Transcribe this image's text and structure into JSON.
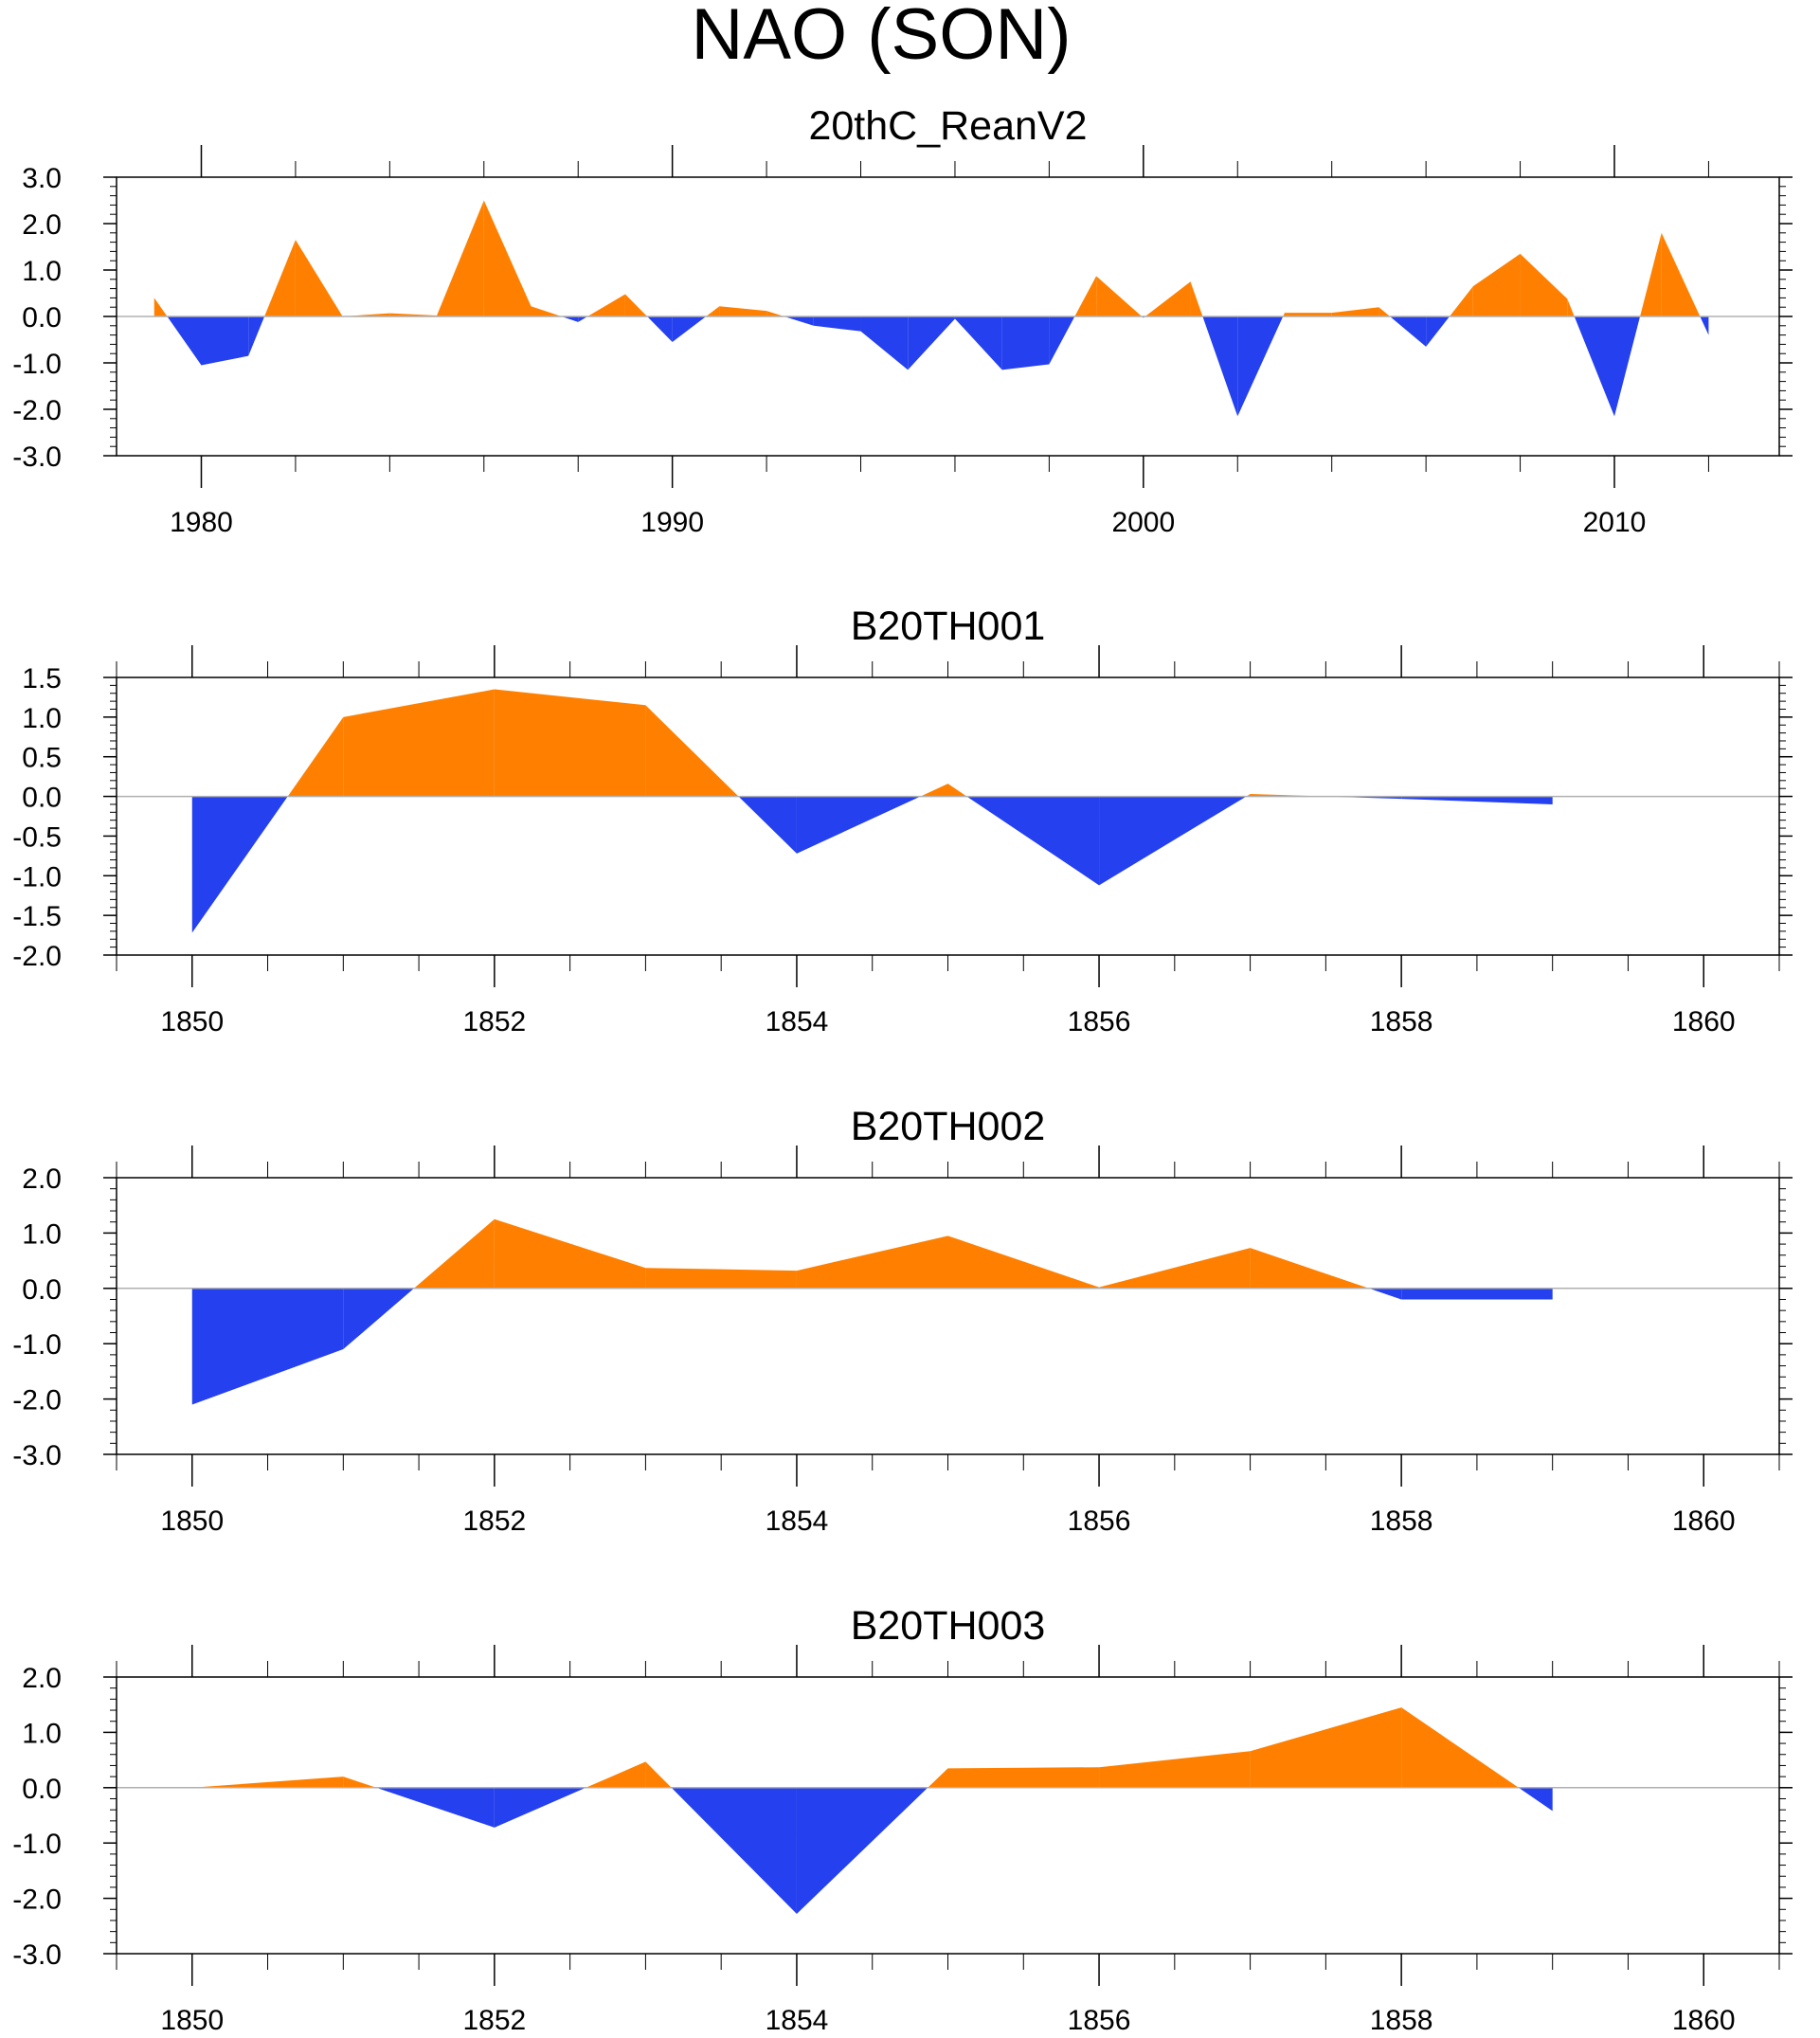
{
  "title": "NAO (SON)",
  "colors": {
    "positive": "#ff8000",
    "negative": "#2540ee",
    "axis": "#000000",
    "zero_line": "#b0b0b0"
  },
  "chart_data": [
    {
      "type": "area",
      "title": "20thC_ReanV2",
      "x": [
        1979,
        1980,
        1981,
        1982,
        1983,
        1984,
        1985,
        1986,
        1987,
        1988,
        1989,
        1990,
        1991,
        1992,
        1993,
        1994,
        1995,
        1996,
        1997,
        1998,
        1999,
        2000,
        2001,
        2002,
        2003,
        2004,
        2005,
        2006,
        2007,
        2008,
        2009,
        2010,
        2011,
        2012
      ],
      "values": [
        0.4,
        -1.05,
        -0.85,
        1.65,
        0.0,
        0.07,
        0.02,
        2.5,
        0.22,
        -0.12,
        0.48,
        -0.55,
        0.22,
        0.12,
        -0.2,
        -0.32,
        -1.15,
        -0.05,
        -1.15,
        -1.03,
        0.87,
        -0.03,
        0.75,
        -2.15,
        0.08,
        0.08,
        0.2,
        -0.65,
        0.65,
        1.35,
        0.38,
        -2.15,
        1.8,
        -0.4
      ],
      "xlim": [
        1978.2,
        2013.5
      ],
      "ylim": [
        -3.0,
        3.0
      ],
      "yticks": [
        "3.0",
        "2.0",
        "1.0",
        "0.0",
        "-1.0",
        "-2.0",
        "-3.0"
      ],
      "ytick_values": [
        3.0,
        2.0,
        1.0,
        0.0,
        -1.0,
        -2.0,
        -3.0
      ],
      "xticks": [
        "1980",
        "1990",
        "2000",
        "2010"
      ],
      "xtick_values": [
        1980,
        1990,
        2000,
        2010
      ],
      "xminor_step": 2,
      "yminor_step": 0.2,
      "xlabel": "",
      "ylabel": "",
      "grid": false
    },
    {
      "type": "area",
      "title": "B20TH001",
      "x": [
        1850,
        1851,
        1852,
        1853,
        1854,
        1855,
        1856,
        1857,
        1858,
        1859
      ],
      "values": [
        -1.72,
        1.0,
        1.35,
        1.15,
        -0.72,
        0.16,
        -1.12,
        0.03,
        -0.03,
        -0.1
      ],
      "xlim": [
        1849.5,
        1860.5
      ],
      "ylim": [
        -2.0,
        1.5
      ],
      "yticks": [
        "1.5",
        "1.0",
        "0.5",
        "0.0",
        "-0.5",
        "-1.0",
        "-1.5",
        "-2.0"
      ],
      "ytick_values": [
        1.5,
        1.0,
        0.5,
        0.0,
        -0.5,
        -1.0,
        -1.5,
        -2.0
      ],
      "xticks": [
        "1850",
        "1852",
        "1854",
        "1856",
        "1858",
        "1860"
      ],
      "xtick_values": [
        1850,
        1852,
        1854,
        1856,
        1858,
        1860
      ],
      "xminor_step": 0.5,
      "yminor_step": 0.1,
      "xlabel": "",
      "ylabel": "",
      "grid": false
    },
    {
      "type": "area",
      "title": "B20TH002",
      "x": [
        1850,
        1851,
        1852,
        1853,
        1854,
        1855,
        1856,
        1857,
        1858,
        1859
      ],
      "values": [
        -2.1,
        -1.1,
        1.25,
        0.37,
        0.32,
        0.95,
        0.02,
        0.73,
        -0.2,
        -0.2
      ],
      "xlim": [
        1849.5,
        1860.5
      ],
      "ylim": [
        -3.0,
        2.0
      ],
      "yticks": [
        "2.0",
        "1.0",
        "0.0",
        "-1.0",
        "-2.0",
        "-3.0"
      ],
      "ytick_values": [
        2.0,
        1.0,
        0.0,
        -1.0,
        -2.0,
        -3.0
      ],
      "xticks": [
        "1850",
        "1852",
        "1854",
        "1856",
        "1858",
        "1860"
      ],
      "xtick_values": [
        1850,
        1852,
        1854,
        1856,
        1858,
        1860
      ],
      "xminor_step": 0.5,
      "yminor_step": 0.2,
      "xlabel": "",
      "ylabel": "",
      "grid": false
    },
    {
      "type": "area",
      "title": "B20TH003",
      "x": [
        1850,
        1851,
        1852,
        1853,
        1854,
        1855,
        1856,
        1857,
        1858,
        1859
      ],
      "values": [
        0.0,
        0.2,
        -0.72,
        0.47,
        -2.28,
        0.35,
        0.37,
        0.66,
        1.45,
        -0.42
      ],
      "xlim": [
        1849.5,
        1860.5
      ],
      "ylim": [
        -3.0,
        2.0
      ],
      "yticks": [
        "2.0",
        "1.0",
        "0.0",
        "-1.0",
        "-2.0",
        "-3.0"
      ],
      "ytick_values": [
        2.0,
        1.0,
        0.0,
        -1.0,
        -2.0,
        -3.0
      ],
      "xticks": [
        "1850",
        "1852",
        "1854",
        "1856",
        "1858",
        "1860"
      ],
      "xtick_values": [
        1850,
        1852,
        1854,
        1856,
        1858,
        1860
      ],
      "xminor_step": 0.5,
      "yminor_step": 0.2,
      "xlabel": "",
      "ylabel": "",
      "grid": false
    }
  ]
}
